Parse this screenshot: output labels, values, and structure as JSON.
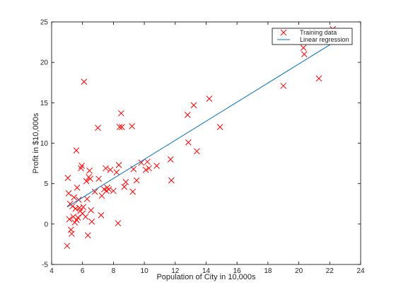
{
  "chart_data": {
    "type": "scatter",
    "xlabel": "Population of City in 10,000s",
    "ylabel": "Profit in $10,000s",
    "xlim": [
      4,
      24
    ],
    "ylim": [
      -5,
      25
    ],
    "xticks": [
      4,
      6,
      8,
      10,
      12,
      14,
      16,
      18,
      20,
      22,
      24
    ],
    "yticks": [
      -5,
      0,
      5,
      10,
      15,
      20,
      25
    ],
    "grid": false,
    "legend_position": "top-right",
    "colors": {
      "scatter": "#ff0000",
      "line": "#0072bd"
    },
    "series": [
      {
        "name": "Training data",
        "kind": "scatter",
        "marker": "x",
        "points": [
          [
            5.0,
            -2.7
          ],
          [
            5.05,
            5.7
          ],
          [
            5.1,
            3.8
          ],
          [
            5.15,
            0.6
          ],
          [
            5.2,
            2.5
          ],
          [
            5.25,
            -0.7
          ],
          [
            5.3,
            -1.2
          ],
          [
            5.35,
            2.2
          ],
          [
            5.4,
            0.9
          ],
          [
            5.45,
            3.3
          ],
          [
            5.5,
            0.2
          ],
          [
            5.55,
            1.9
          ],
          [
            5.6,
            9.1
          ],
          [
            5.62,
            0.5
          ],
          [
            5.65,
            4.5
          ],
          [
            5.7,
            0.8
          ],
          [
            5.75,
            3.0
          ],
          [
            5.8,
            2.0
          ],
          [
            5.85,
            1.6
          ],
          [
            5.9,
            6.9
          ],
          [
            5.95,
            7.2
          ],
          [
            6.0,
            1.3
          ],
          [
            6.05,
            2.1
          ],
          [
            6.1,
            17.6
          ],
          [
            6.2,
            0.9
          ],
          [
            6.25,
            5.3
          ],
          [
            6.3,
            3.1
          ],
          [
            6.35,
            -1.4
          ],
          [
            6.4,
            5.8
          ],
          [
            6.45,
            6.6
          ],
          [
            6.5,
            5.6
          ],
          [
            6.55,
            1.7
          ],
          [
            6.6,
            0.3
          ],
          [
            6.8,
            4.0
          ],
          [
            7.0,
            11.9
          ],
          [
            7.05,
            5.6
          ],
          [
            7.2,
            1.1
          ],
          [
            7.25,
            3.5
          ],
          [
            7.4,
            4.3
          ],
          [
            7.5,
            6.9
          ],
          [
            7.55,
            4.1
          ],
          [
            7.6,
            4.5
          ],
          [
            7.7,
            4.3
          ],
          [
            7.8,
            6.7
          ],
          [
            8.0,
            4.1
          ],
          [
            8.2,
            6.4
          ],
          [
            8.3,
            0.1
          ],
          [
            8.35,
            7.3
          ],
          [
            8.4,
            12.0
          ],
          [
            8.5,
            13.7
          ],
          [
            8.55,
            12.0
          ],
          [
            8.7,
            4.6
          ],
          [
            8.8,
            5.2
          ],
          [
            9.2,
            12.1
          ],
          [
            9.25,
            4.0
          ],
          [
            9.3,
            6.8
          ],
          [
            9.5,
            5.4
          ],
          [
            9.8,
            7.6
          ],
          [
            10.1,
            6.7
          ],
          [
            10.2,
            7.7
          ],
          [
            10.3,
            6.9
          ],
          [
            10.8,
            7.2
          ],
          [
            11.7,
            8.0
          ],
          [
            11.75,
            5.4
          ],
          [
            12.8,
            13.5
          ],
          [
            12.85,
            10.1
          ],
          [
            13.2,
            14.7
          ],
          [
            13.4,
            9.0
          ],
          [
            14.2,
            15.5
          ],
          [
            14.9,
            12.0
          ],
          [
            19.0,
            17.1
          ],
          [
            20.3,
            21.8
          ],
          [
            20.35,
            21.0
          ],
          [
            21.3,
            18.0
          ],
          [
            22.2,
            24.1
          ]
        ]
      },
      {
        "name": "Linear regression",
        "kind": "line",
        "points": [
          [
            5.0,
            2.1
          ],
          [
            22.2,
            22.4
          ]
        ]
      }
    ]
  }
}
